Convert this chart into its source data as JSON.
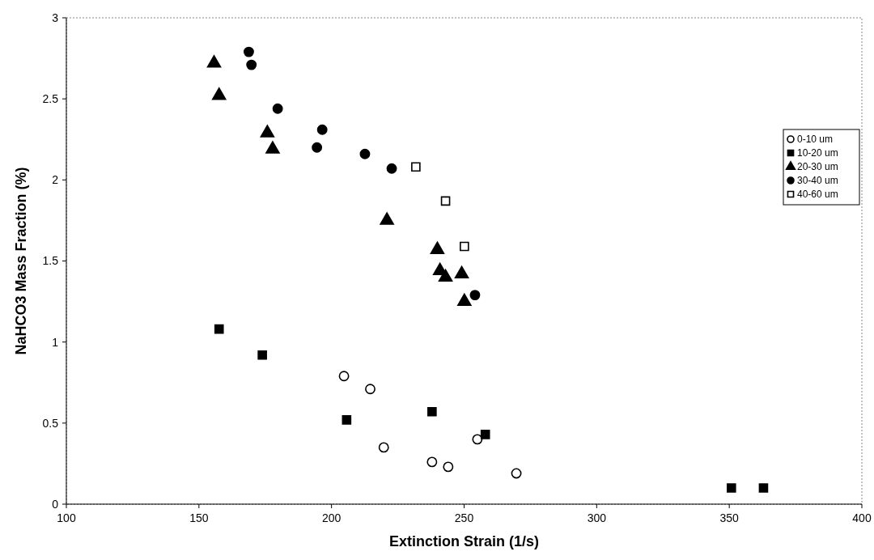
{
  "chart_data": {
    "type": "scatter",
    "xlabel": "Extinction Strain (1/s)",
    "ylabel": "NaHCO3 Mass Fraction (%)",
    "xlim": [
      100,
      400
    ],
    "xticks": [
      100,
      150,
      200,
      250,
      300,
      350,
      400
    ],
    "ylim": [
      0,
      3
    ],
    "yticks": [
      0,
      0.5,
      1,
      1.5,
      2,
      2.5,
      3
    ],
    "grid": false,
    "legend": "right",
    "series": [
      {
        "name": "0-10 um",
        "color": "#000000",
        "marker": "circle-open",
        "x": [
          204.7,
          214.6,
          219.7,
          237.9,
          244.0,
          255.0,
          269.7
        ],
        "values": [
          0.79,
          0.71,
          0.35,
          0.26,
          0.23,
          0.4,
          0.19
        ]
      },
      {
        "name": "10-20 um",
        "color": "#000000",
        "marker": "square",
        "x": [
          157.6,
          173.9,
          205.7,
          237.9,
          258.0,
          350.8,
          362.9
        ],
        "values": [
          1.08,
          0.92,
          0.52,
          0.57,
          0.43,
          0.1,
          0.1
        ]
      },
      {
        "name": "20-30 um",
        "color": "#000000",
        "marker": "triangle",
        "x": [
          155.7,
          157.6,
          175.8,
          177.8,
          220.9,
          239.9,
          240.9,
          243.0,
          249.1,
          250.1
        ],
        "values": [
          2.72,
          2.52,
          2.29,
          2.19,
          1.75,
          1.57,
          1.44,
          1.4,
          1.42,
          1.25
        ]
      },
      {
        "name": "30-40 um",
        "color": "#000000",
        "marker": "circle",
        "x": [
          168.8,
          169.8,
          179.7,
          196.5,
          194.5,
          212.6,
          222.7,
          254.1
        ],
        "values": [
          2.79,
          2.71,
          2.44,
          2.31,
          2.2,
          2.16,
          2.07,
          1.29
        ]
      },
      {
        "name": "40-60 um",
        "color": "#000000",
        "marker": "square-open",
        "x": [
          231.8,
          243.0,
          250.1
        ],
        "values": [
          2.08,
          1.87,
          1.59
        ]
      }
    ]
  }
}
